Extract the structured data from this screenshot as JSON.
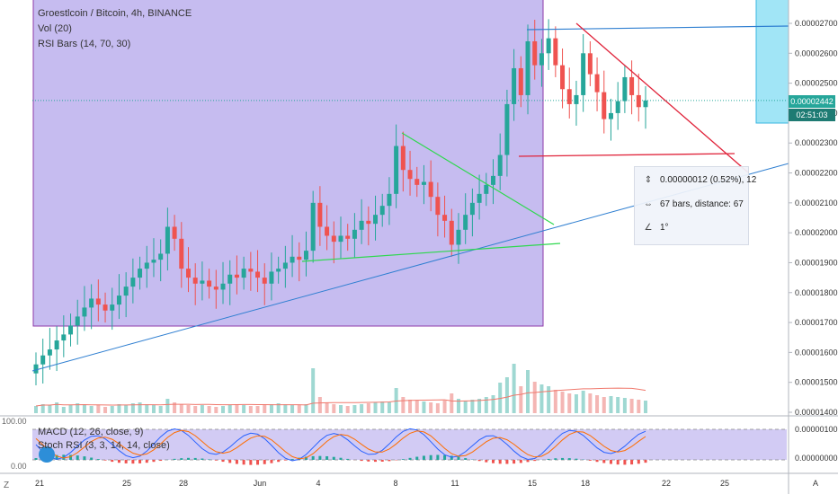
{
  "legend": {
    "symbol_line": "Groestlcoin / Bitcoin, 4h, BINANCE",
    "vol_line": "Vol (20)",
    "rsi_line": "RSI Bars (14, 70, 30)",
    "macd_line": "MACD (12, 26, close, 9)",
    "stoch_line": "Stoch RSI (3, 3, 14, 14, close)"
  },
  "price_axis": {
    "ticks": [
      "0.00002700",
      "0.00002600",
      "0.00002500",
      "0.00002400",
      "0.00002300",
      "0.00002200",
      "0.00002100",
      "0.00002000",
      "0.00001900",
      "0.00001800",
      "0.00001700",
      "0.00001600",
      "0.00001500",
      "0.00001400"
    ],
    "tick_values": [
      2.7e-05,
      2.6e-05,
      2.5e-05,
      2.4e-05,
      2.3e-05,
      2.2e-05,
      2.1e-05,
      2e-05,
      1.9e-05,
      1.8e-05,
      1.7e-05,
      1.6e-05,
      1.5e-05,
      1.4e-05
    ],
    "current_price": "0.00002442",
    "countdown": "02:51:03",
    "partial_tick": "0."
  },
  "lower_axis": {
    "top_tick": "0.00000100",
    "bottom_tick": "0.00000000"
  },
  "left_axis": {
    "top": "100.00",
    "bottom": "0.00",
    "z_label": "Z"
  },
  "time_axis": {
    "labels": [
      "21",
      "25",
      "28",
      "Jun",
      "4",
      "8",
      "11",
      "15",
      "18",
      "22",
      "25"
    ],
    "corner_label": "A"
  },
  "measure": {
    "price_change": "0.00000012 (0.52%), 12",
    "bars_distance": "67 bars, distance: 67",
    "angle": "1°",
    "price_icon": "price-range-icon",
    "bars_icon": "bars-range-icon",
    "angle_icon": "angle-icon"
  },
  "colors": {
    "up": "#26a69a",
    "down": "#ef5350",
    "rect_fill": "#9c8ce6",
    "rect_border": "#8e3aa8",
    "cyan_fill": "#90e0f5",
    "trend_blue": "#2f7fd1",
    "trend_green": "#2ed84e",
    "trend_red": "#e0233a",
    "price_tag": "#26a69a",
    "countdown_tag": "#1e7b73"
  },
  "chart_data": {
    "type": "candlestick",
    "title": "Groestlcoin / Bitcoin, 4h, BINANCE",
    "xlabel": "",
    "ylabel": "",
    "ylim": [
      1.39e-05,
      2.75e-05
    ],
    "x_labels": [
      "21",
      "25",
      "28",
      "Jun",
      "4",
      "8",
      "11",
      "15",
      "18",
      "22",
      "25"
    ],
    "closes": [
      1.56e-05,
      1.59e-05,
      1.61e-05,
      1.64e-05,
      1.66e-05,
      1.69e-05,
      1.72e-05,
      1.75e-05,
      1.78e-05,
      1.76e-05,
      1.74e-05,
      1.76e-05,
      1.79e-05,
      1.82e-05,
      1.85e-05,
      1.88e-05,
      1.9e-05,
      1.91e-05,
      1.93e-05,
      2.02e-05,
      1.98e-05,
      1.88e-05,
      1.85e-05,
      1.83e-05,
      1.84e-05,
      1.82e-05,
      1.81e-05,
      1.83e-05,
      1.86e-05,
      1.85e-05,
      1.88e-05,
      1.87e-05,
      1.85e-05,
      1.83e-05,
      1.87e-05,
      1.88e-05,
      1.9e-05,
      1.92e-05,
      1.91e-05,
      1.94e-05,
      2.1e-05,
      2.02e-05,
      1.99e-05,
      1.97e-05,
      1.99e-05,
      1.98e-05,
      2.01e-05,
      2.04e-05,
      2.03e-05,
      2.06e-05,
      2.09e-05,
      2.13e-05,
      2.29e-05,
      2.21e-05,
      2.18e-05,
      2.16e-05,
      2.17e-05,
      2.12e-05,
      2.06e-05,
      2.04e-05,
      1.96e-05,
      2.01e-05,
      2.06e-05,
      2.1e-05,
      2.13e-05,
      2.16e-05,
      2.19e-05,
      2.26e-05,
      2.43e-05,
      2.55e-05,
      2.46e-05,
      2.64e-05,
      2.56e-05,
      2.6e-05,
      2.65e-05,
      2.56e-05,
      2.48e-05,
      2.43e-05,
      2.46e-05,
      2.6e-05,
      2.53e-05,
      2.47e-05,
      2.38e-05,
      2.4e-05,
      2.44e-05,
      2.52e-05,
      2.46e-05,
      2.42e-05,
      2.442e-05
    ],
    "volume_ylim": [
      0,
      100
    ],
    "volume": [
      8,
      10,
      9,
      12,
      7,
      9,
      11,
      10,
      8,
      9,
      7,
      8,
      10,
      9,
      11,
      12,
      10,
      9,
      8,
      16,
      12,
      10,
      9,
      8,
      9,
      8,
      7,
      8,
      9,
      10,
      9,
      8,
      8,
      9,
      10,
      11,
      10,
      9,
      9,
      10,
      50,
      18,
      12,
      10,
      9,
      8,
      9,
      10,
      11,
      12,
      13,
      12,
      28,
      18,
      15,
      14,
      13,
      12,
      11,
      14,
      22,
      16,
      14,
      15,
      16,
      18,
      20,
      34,
      40,
      55,
      30,
      48,
      35,
      32,
      30,
      26,
      24,
      22,
      21,
      25,
      22,
      20,
      18,
      19,
      18,
      17,
      16,
      15,
      14
    ]
  }
}
